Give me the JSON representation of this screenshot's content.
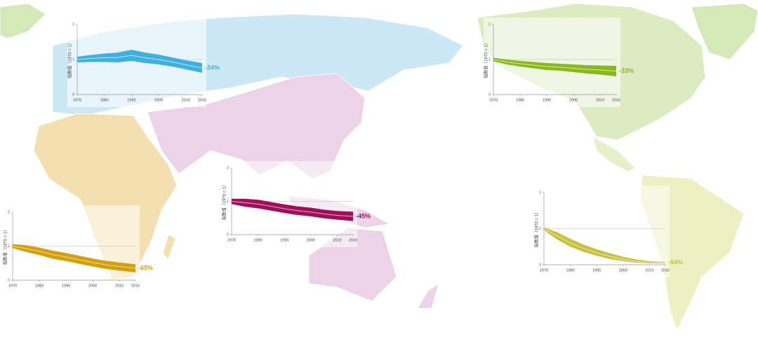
{
  "chart_data": [
    {
      "type": "line",
      "y_label": "指数值（1970 = 1）",
      "annotation": "-24%",
      "color": "#3fb0e0",
      "line_color": "#bfe6f7",
      "x": [
        1970,
        1975,
        1980,
        1985,
        1990,
        1995,
        2000,
        2005,
        2010,
        2016
      ],
      "values": [
        1,
        1.03,
        1.05,
        1.06,
        1.12,
        1.05,
        1.0,
        0.93,
        0.85,
        0.76
      ],
      "upper": [
        1.08,
        1.13,
        1.17,
        1.2,
        1.28,
        1.2,
        1.14,
        1.06,
        0.98,
        0.9
      ],
      "lower": [
        0.92,
        0.93,
        0.93,
        0.92,
        0.96,
        0.9,
        0.86,
        0.8,
        0.72,
        0.62
      ],
      "xlim": [
        1970,
        2016
      ],
      "ylim": [
        0,
        2
      ],
      "xticks": [
        1970,
        1980,
        1990,
        2000,
        2010,
        2016
      ],
      "yticks": [
        0,
        1,
        2
      ],
      "reference_line": 1
    },
    {
      "type": "line",
      "y_label": "指数值（1970 = 1）",
      "annotation": "-33%",
      "color": "#8ab81e",
      "line_color": "#d8ec9e",
      "x": [
        1970,
        1975,
        1980,
        1985,
        1990,
        1995,
        2000,
        2005,
        2010,
        2016
      ],
      "values": [
        1,
        0.93,
        0.88,
        0.84,
        0.8,
        0.78,
        0.75,
        0.72,
        0.7,
        0.67
      ],
      "upper": [
        1.05,
        1.0,
        0.96,
        0.93,
        0.9,
        0.88,
        0.86,
        0.84,
        0.83,
        0.82
      ],
      "lower": [
        0.95,
        0.86,
        0.8,
        0.75,
        0.7,
        0.68,
        0.64,
        0.6,
        0.57,
        0.52
      ],
      "xlim": [
        1970,
        2016
      ],
      "ylim": [
        0,
        2
      ],
      "xticks": [
        1970,
        1980,
        1990,
        2000,
        2010,
        2016
      ],
      "yticks": [
        0,
        1,
        2
      ],
      "reference_line": 1
    },
    {
      "type": "line",
      "y_label": "指数值（1970 = 1）",
      "annotation": "-65%",
      "color": "#d4a010",
      "line_color": "#f3dc95",
      "x": [
        1970,
        1975,
        1980,
        1985,
        1990,
        1995,
        2000,
        2005,
        2010,
        2016
      ],
      "values": [
        1,
        0.93,
        0.85,
        0.75,
        0.68,
        0.6,
        0.52,
        0.45,
        0.4,
        0.35
      ],
      "upper": [
        1.06,
        1.03,
        0.96,
        0.87,
        0.8,
        0.72,
        0.64,
        0.57,
        0.52,
        0.47
      ],
      "lower": [
        0.94,
        0.83,
        0.74,
        0.63,
        0.56,
        0.48,
        0.4,
        0.33,
        0.28,
        0.23
      ],
      "xlim": [
        1970,
        2016
      ],
      "ylim": [
        0,
        2
      ],
      "xticks": [
        1970,
        1980,
        1990,
        2000,
        2010,
        2016
      ],
      "yticks": [
        0,
        1,
        2
      ],
      "reference_line": 1
    },
    {
      "type": "line",
      "y_label": "指数值（1970 = 1）",
      "annotation": "-45%",
      "color": "#a0105a",
      "line_color": "#e7a8c8",
      "x": [
        1970,
        1975,
        1980,
        1985,
        1990,
        1995,
        2000,
        2005,
        2010,
        2016
      ],
      "values": [
        1,
        0.96,
        0.92,
        0.85,
        0.78,
        0.72,
        0.68,
        0.62,
        0.58,
        0.55
      ],
      "upper": [
        1.08,
        1.08,
        1.05,
        0.98,
        0.91,
        0.85,
        0.81,
        0.75,
        0.71,
        0.69
      ],
      "lower": [
        0.92,
        0.84,
        0.79,
        0.72,
        0.65,
        0.59,
        0.55,
        0.49,
        0.45,
        0.41
      ],
      "xlim": [
        1970,
        2016
      ],
      "ylim": [
        0,
        2
      ],
      "xticks": [
        1970,
        1980,
        1990,
        2000,
        2010,
        2016
      ],
      "yticks": [
        0,
        1,
        2
      ],
      "reference_line": 1
    },
    {
      "type": "line",
      "y_label": "指数值（1970 = 1）",
      "annotation": "-94%",
      "color": "#c8c040",
      "line_color": "#eeeab0",
      "x": [
        1970,
        1975,
        1980,
        1985,
        1990,
        1995,
        2000,
        2005,
        2010,
        2016
      ],
      "values": [
        1,
        0.8,
        0.6,
        0.45,
        0.33,
        0.23,
        0.15,
        0.1,
        0.07,
        0.06
      ],
      "upper": [
        1.04,
        0.9,
        0.72,
        0.56,
        0.43,
        0.32,
        0.22,
        0.15,
        0.1,
        0.08
      ],
      "lower": [
        0.96,
        0.7,
        0.5,
        0.36,
        0.25,
        0.16,
        0.1,
        0.06,
        0.04,
        0.04
      ],
      "xlim": [
        1970,
        2016
      ],
      "ylim": [
        0,
        2
      ],
      "xticks": [
        1970,
        1980,
        1990,
        2000,
        2010,
        2016
      ],
      "yticks": [
        0,
        1,
        2
      ],
      "reference_line": 1
    }
  ]
}
